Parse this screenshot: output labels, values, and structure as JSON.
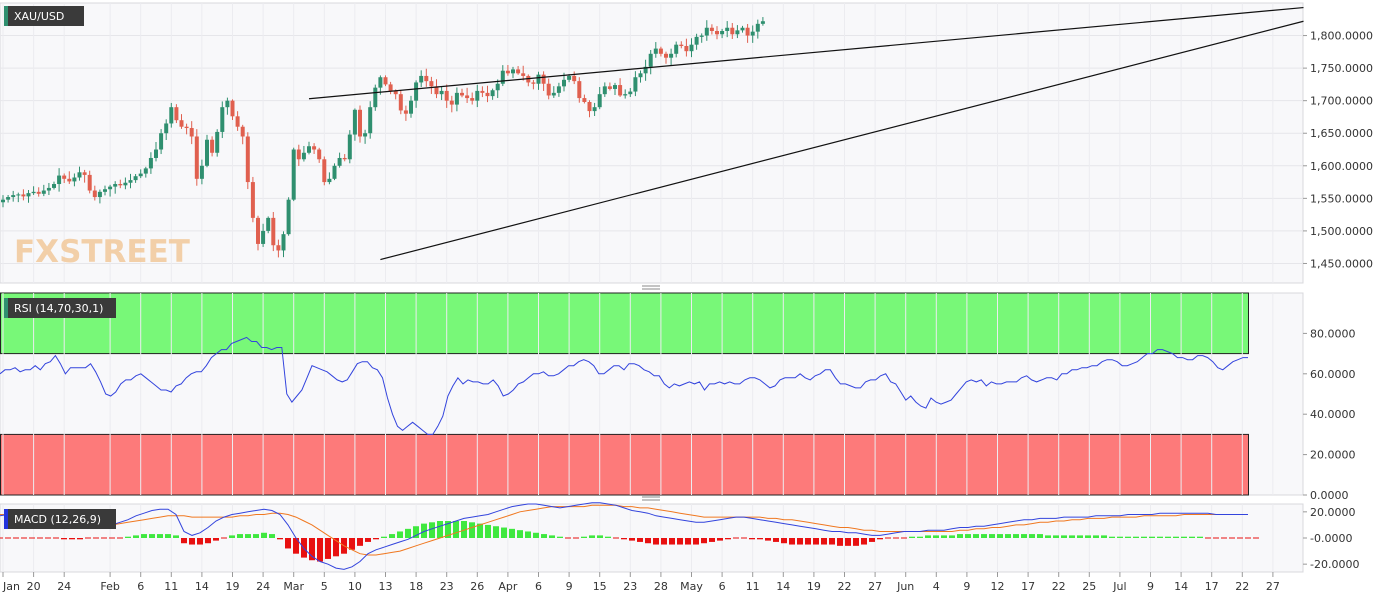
{
  "chart_data": [
    {
      "type": "candlestick",
      "title": "XAU/USD",
      "watermark": "FXSTREET",
      "colors": {
        "up": "#2f8f6f",
        "down": "#e0604f",
        "grid": "#e6e6ea",
        "background": "#f8f8fa"
      },
      "ylim": [
        1420,
        1850
      ],
      "yticks": [
        "1,800.0000",
        "1,750.0000",
        "1,700.0000",
        "1,650.0000",
        "1,600.0000",
        "1,550.0000",
        "1,500.0000",
        "1,450.0000"
      ],
      "ytick_values": [
        1800,
        1750,
        1700,
        1650,
        1600,
        1550,
        1500,
        1450
      ],
      "close": [
        1548,
        1552,
        1555,
        1556,
        1553,
        1558,
        1560,
        1557,
        1562,
        1566,
        1572,
        1585,
        1580,
        1576,
        1582,
        1590,
        1586,
        1562,
        1552,
        1560,
        1564,
        1568,
        1572,
        1570,
        1574,
        1578,
        1584,
        1588,
        1596,
        1612,
        1625,
        1650,
        1665,
        1690,
        1670,
        1660,
        1658,
        1645,
        1580,
        1600,
        1640,
        1620,
        1652,
        1690,
        1700,
        1676,
        1660,
        1645,
        1575,
        1520,
        1480,
        1500,
        1520,
        1478,
        1470,
        1495,
        1548,
        1625,
        1610,
        1620,
        1630,
        1625,
        1610,
        1575,
        1580,
        1600,
        1612,
        1610,
        1648,
        1686,
        1645,
        1650,
        1690,
        1720,
        1736,
        1725,
        1715,
        1710,
        1685,
        1680,
        1700,
        1728,
        1738,
        1730,
        1722,
        1710,
        1715,
        1700,
        1694,
        1712,
        1708,
        1704,
        1700,
        1715,
        1712,
        1707,
        1716,
        1726,
        1746,
        1742,
        1748,
        1742,
        1738,
        1728,
        1726,
        1740,
        1726,
        1708,
        1712,
        1722,
        1732,
        1738,
        1730,
        1704,
        1698,
        1684,
        1690,
        1710,
        1722,
        1718,
        1724,
        1708,
        1710,
        1714,
        1736,
        1742,
        1752,
        1772,
        1780,
        1772,
        1766,
        1772,
        1786,
        1784,
        1776,
        1786,
        1798,
        1800,
        1812,
        1807,
        1802,
        1807,
        1812,
        1802,
        1808,
        1812,
        1800,
        1806,
        1818,
        1822
      ],
      "x_tick_labels": [
        "Jan",
        "20",
        "24",
        "Feb",
        "6",
        "11",
        "14",
        "19",
        "24",
        "Mar",
        "5",
        "10",
        "13",
        "18",
        "23",
        "26",
        "Apr",
        "6",
        "9",
        "15",
        "23",
        "28",
        "May",
        "6",
        "11",
        "14",
        "19",
        "22",
        "27",
        "Jun",
        "4",
        "9",
        "12",
        "17",
        "22",
        "25",
        "Jul",
        "9",
        "14",
        "17",
        "22",
        "27"
      ],
      "x_tick_index": [
        0,
        6,
        12,
        21,
        27,
        33,
        39,
        45,
        51,
        57,
        63,
        69,
        75,
        81,
        87,
        93,
        99,
        105,
        111,
        117,
        123,
        129,
        135,
        141,
        147,
        153,
        159,
        165,
        171,
        177,
        183,
        189,
        195,
        201,
        207,
        213,
        219,
        225,
        231,
        237,
        243,
        249
      ],
      "trendlines": [
        {
          "from": {
            "i": 60,
            "v": 1703
          },
          "to": {
            "i": 255,
            "v": 1843
          }
        },
        {
          "from": {
            "i": 74,
            "v": 1456
          },
          "to": {
            "i": 255,
            "v": 1822
          }
        }
      ]
    },
    {
      "type": "line",
      "title": "RSI (14,70,30,1)",
      "ylim": [
        0,
        100
      ],
      "yticks": [
        "80.0000",
        "60.0000",
        "40.0000",
        "20.0000",
        "0.0000"
      ],
      "ytick_values": [
        80,
        60,
        40,
        20,
        0
      ],
      "overbought": 70,
      "oversold": 30,
      "colors": {
        "line": "#3344dd",
        "overbought_zone": "#78f878",
        "oversold_zone": "#fd7a7a"
      },
      "values": [
        60,
        62,
        62,
        63,
        61,
        62,
        62,
        64,
        62,
        65,
        66,
        69,
        65,
        60,
        63,
        63,
        63,
        63,
        65,
        61,
        56,
        50,
        49,
        51,
        55,
        57,
        57,
        59,
        60,
        58,
        56,
        54,
        52,
        52,
        51,
        54,
        55,
        58,
        60,
        61,
        61,
        64,
        68,
        70,
        72,
        72,
        75,
        76,
        77,
        78,
        76,
        76,
        73,
        73,
        72,
        73,
        73,
        50,
        46,
        49,
        52,
        58,
        64,
        63,
        62,
        61,
        59,
        57,
        56,
        57,
        61,
        65,
        66,
        66,
        63,
        62,
        58,
        48,
        40,
        34,
        32,
        34,
        36,
        34,
        32,
        30,
        30,
        34,
        39,
        49,
        54,
        58,
        55,
        57,
        56,
        56,
        55,
        55,
        57,
        54,
        49,
        50,
        52,
        55,
        56,
        58,
        60,
        60,
        61,
        59,
        59,
        60,
        62,
        64,
        64,
        66,
        67,
        66,
        64,
        60,
        60,
        62,
        64,
        64,
        62,
        65,
        65,
        64,
        62,
        61,
        59,
        59,
        55,
        53,
        55,
        54,
        55,
        56,
        55,
        56,
        52,
        55,
        55,
        56,
        55,
        56,
        55,
        55,
        57,
        58,
        58,
        57,
        55,
        53,
        54,
        57,
        58,
        58,
        58,
        60,
        58,
        57,
        59,
        60,
        62,
        62,
        58,
        55,
        55,
        54,
        53,
        53,
        56,
        57,
        57,
        59,
        60,
        56,
        55,
        51,
        47,
        49,
        46,
        44,
        43,
        48,
        46,
        45,
        46,
        47,
        50,
        53,
        56,
        57,
        56,
        57,
        54,
        56,
        55,
        55,
        56,
        56,
        56,
        58,
        59,
        57,
        56,
        57,
        58,
        58,
        57,
        60,
        60,
        62,
        62,
        63,
        63,
        64,
        64,
        66,
        67,
        67,
        66,
        64,
        64,
        65,
        66,
        68,
        70,
        70,
        72,
        72,
        71,
        70,
        68,
        68,
        67,
        67,
        69,
        69,
        68,
        66,
        63,
        62,
        64,
        66,
        67,
        68,
        68
      ]
    },
    {
      "type": "bar_line",
      "title": "MACD (12,26,9)",
      "ylim": [
        -26,
        26
      ],
      "yticks": [
        "20.0000",
        "-0.0000",
        "-20.0000"
      ],
      "ytick_values": [
        20,
        0,
        -20
      ],
      "colors": {
        "macd": "#3344dd",
        "signal": "#f07820",
        "hist_up": "#3fe83f",
        "hist_down": "#e81010"
      },
      "macd": [
        17,
        18,
        18,
        18,
        17,
        16,
        14,
        12,
        10,
        9,
        8,
        8,
        8,
        9,
        10,
        12,
        14,
        17,
        19,
        21,
        22,
        22,
        18,
        5,
        2,
        4,
        8,
        13,
        16,
        18,
        19,
        20,
        21,
        22,
        21,
        18,
        10,
        0,
        -8,
        -14,
        -18,
        -20,
        -23,
        -24,
        -22,
        -18,
        -12,
        -9,
        -7,
        -5,
        -3,
        -1,
        2,
        5,
        7,
        9,
        11,
        13,
        15,
        16,
        17,
        18,
        20,
        22,
        24,
        25,
        26,
        26,
        25,
        24,
        23,
        24,
        25,
        26,
        27,
        27,
        26,
        25,
        23,
        21,
        20,
        19,
        17,
        16,
        15,
        14,
        13,
        12,
        12,
        13,
        14,
        15,
        16,
        16,
        15,
        14,
        13,
        12,
        11,
        10,
        9,
        8,
        7,
        6,
        5,
        5,
        4,
        4,
        3,
        2,
        2,
        3,
        4,
        5,
        5,
        5,
        6,
        6,
        6,
        7,
        8,
        8,
        9,
        9,
        10,
        11,
        12,
        13,
        14,
        14,
        15,
        15,
        15,
        16,
        16,
        16,
        16,
        17,
        17,
        17,
        17,
        18,
        18,
        18,
        18,
        19,
        19,
        19,
        19,
        19,
        19,
        19,
        18,
        18,
        18,
        18,
        18
      ],
      "signal": [
        18,
        18,
        18,
        17,
        17,
        16,
        15,
        14,
        13,
        12,
        11,
        10,
        10,
        10,
        10,
        11,
        12,
        13,
        14,
        15,
        16,
        17,
        17,
        17,
        16,
        16,
        16,
        16,
        16,
        16,
        17,
        17,
        18,
        18,
        19,
        19,
        18,
        16,
        13,
        10,
        6,
        2,
        -2,
        -6,
        -9,
        -12,
        -13,
        -13,
        -12,
        -11,
        -10,
        -8,
        -6,
        -4,
        -2,
        0,
        2,
        4,
        6,
        8,
        10,
        12,
        14,
        16,
        18,
        20,
        21,
        22,
        23,
        24,
        24,
        24,
        24,
        24,
        25,
        25,
        25,
        25,
        24,
        24,
        23,
        23,
        22,
        21,
        20,
        19,
        18,
        17,
        16,
        16,
        16,
        16,
        16,
        16,
        16,
        16,
        15,
        15,
        14,
        14,
        13,
        12,
        11,
        10,
        9,
        8,
        8,
        7,
        6,
        6,
        5,
        5,
        5,
        5,
        5,
        5,
        5,
        5,
        5,
        5,
        6,
        6,
        7,
        7,
        8,
        8,
        9,
        10,
        10,
        11,
        12,
        12,
        13,
        13,
        14,
        14,
        15,
        15,
        15,
        16,
        16,
        16,
        16,
        17,
        17,
        17,
        17,
        17,
        18,
        18,
        18,
        18,
        18,
        18,
        18,
        18,
        18
      ],
      "histogram": [
        0,
        0,
        0,
        0,
        0,
        0,
        0,
        0,
        -1,
        -1,
        -1,
        0,
        0,
        0,
        0,
        0,
        1,
        2,
        3,
        3,
        3,
        3,
        2,
        -4,
        -5,
        -5,
        -4,
        -2,
        0,
        2,
        3,
        3,
        3,
        4,
        3,
        -1,
        -8,
        -12,
        -15,
        -17,
        -18,
        -16,
        -14,
        -12,
        -9,
        -6,
        -3,
        -1,
        1,
        3,
        5,
        7,
        9,
        11,
        12,
        13,
        13,
        13,
        13,
        12,
        11,
        10,
        9,
        8,
        7,
        6,
        5,
        4,
        3,
        2,
        1,
        0,
        0,
        1,
        2,
        2,
        1,
        0,
        -1,
        -2,
        -3,
        -4,
        -5,
        -5,
        -5,
        -5,
        -5,
        -5,
        -4,
        -3,
        -2,
        -1,
        0,
        0,
        -1,
        -1,
        -2,
        -3,
        -4,
        -5,
        -5,
        -5,
        -5,
        -5,
        -5,
        -6,
        -6,
        -6,
        -5,
        -3,
        -1,
        0,
        0,
        0,
        1,
        1,
        2,
        2,
        2,
        2,
        3,
        3,
        3,
        3,
        3,
        3,
        3,
        3,
        3,
        3,
        3,
        2,
        2,
        2,
        2,
        2,
        2,
        2,
        2,
        1,
        1,
        1,
        1,
        1,
        1,
        1,
        1,
        1,
        1,
        1,
        1,
        0,
        0,
        0,
        0,
        0,
        0,
        0
      ]
    }
  ]
}
